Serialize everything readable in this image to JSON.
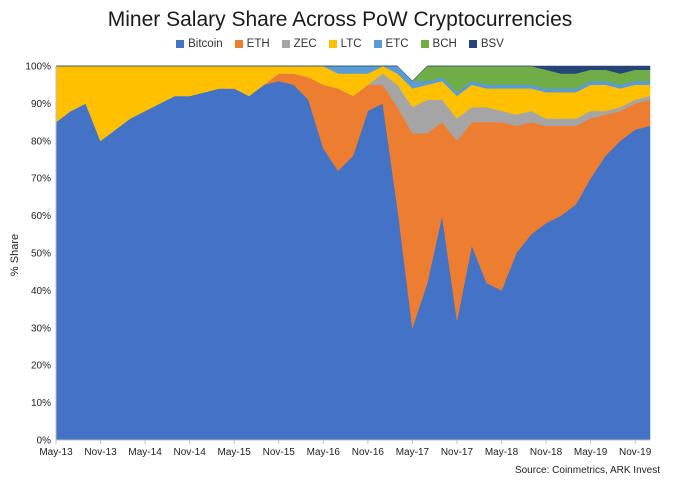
{
  "chart_data": {
    "type": "area",
    "title": "Miner Salary Share Across PoW Cryptocurrencies",
    "ylabel": "% Share",
    "xlabel": "",
    "source": "Source: Coinmetrics, ARK Invest",
    "ylim": [
      0,
      100
    ],
    "yticks": [
      "0%",
      "10%",
      "20%",
      "30%",
      "40%",
      "50%",
      "60%",
      "70%",
      "80%",
      "90%",
      "100%"
    ],
    "xticks": [
      "May-13",
      "Nov-13",
      "May-14",
      "Nov-14",
      "May-15",
      "Nov-15",
      "May-16",
      "Nov-16",
      "May-17",
      "Nov-17",
      "May-18",
      "Nov-18",
      "May-19",
      "Nov-19"
    ],
    "legend_position": "top",
    "stacked": true,
    "series": [
      {
        "name": "Bitcoin",
        "color": "#4472C4"
      },
      {
        "name": "ETH",
        "color": "#ED7D31"
      },
      {
        "name": "ZEC",
        "color": "#A5A5A5"
      },
      {
        "name": "LTC",
        "color": "#FFC000"
      },
      {
        "name": "ETC",
        "color": "#5B9BD5"
      },
      {
        "name": "BCH",
        "color": "#70AD47"
      },
      {
        "name": "BSV",
        "color": "#264478"
      }
    ],
    "x": [
      "May-13",
      "Jul-13",
      "Sep-13",
      "Nov-13",
      "Jan-14",
      "Mar-14",
      "May-14",
      "Jul-14",
      "Sep-14",
      "Nov-14",
      "Jan-15",
      "Mar-15",
      "May-15",
      "Jul-15",
      "Sep-15",
      "Nov-15",
      "Jan-16",
      "Mar-16",
      "May-16",
      "Jul-16",
      "Sep-16",
      "Nov-16",
      "Jan-17",
      "Mar-17",
      "May-17",
      "Jul-17",
      "Sep-17",
      "Nov-17",
      "Jan-18",
      "Mar-18",
      "May-18",
      "Jul-18",
      "Sep-18",
      "Nov-18",
      "Jan-19",
      "Mar-19",
      "May-19",
      "Jul-19",
      "Sep-19",
      "Nov-19",
      "Dec-19"
    ],
    "values": {
      "Bitcoin": [
        85,
        88,
        90,
        80,
        83,
        86,
        88,
        90,
        92,
        92,
        93,
        94,
        94,
        92,
        95,
        96,
        95,
        91,
        78,
        72,
        76,
        88,
        90,
        62,
        30,
        42,
        60,
        32,
        52,
        42,
        40,
        50,
        55,
        58,
        60,
        63,
        70,
        76,
        80,
        83,
        84
      ],
      "ETH": [
        0,
        0,
        0,
        0,
        0,
        0,
        0,
        0,
        0,
        0,
        0,
        0,
        0,
        0,
        0,
        2,
        3,
        6,
        17,
        22,
        16,
        7,
        5,
        27,
        52,
        40,
        25,
        48,
        33,
        43,
        45,
        34,
        30,
        26,
        24,
        21,
        16,
        11,
        8,
        7,
        7
      ],
      "ZEC": [
        0,
        0,
        0,
        0,
        0,
        0,
        0,
        0,
        0,
        0,
        0,
        0,
        0,
        0,
        0,
        0,
        0,
        0,
        0,
        0,
        0,
        0,
        3,
        6,
        7,
        9,
        6,
        6,
        4,
        4,
        3,
        3,
        3,
        2,
        2,
        2,
        2,
        1,
        1,
        1,
        1
      ],
      "LTC": [
        15,
        12,
        10,
        20,
        17,
        14,
        12,
        10,
        8,
        8,
        7,
        6,
        6,
        8,
        5,
        2,
        2,
        3,
        5,
        4,
        6,
        3,
        2,
        3,
        5,
        4,
        5,
        6,
        6,
        5,
        6,
        7,
        6,
        7,
        7,
        7,
        7,
        7,
        5,
        4,
        3
      ],
      "ETC": [
        0,
        0,
        0,
        0,
        0,
        0,
        0,
        0,
        0,
        0,
        0,
        0,
        0,
        0,
        0,
        0,
        0,
        0,
        0,
        2,
        2,
        2,
        0,
        2,
        2,
        1,
        1,
        1,
        1,
        1,
        1,
        1,
        1,
        1,
        1,
        1,
        1,
        1,
        1,
        1,
        1
      ],
      "BCH": [
        0,
        0,
        0,
        0,
        0,
        0,
        0,
        0,
        0,
        0,
        0,
        0,
        0,
        0,
        0,
        0,
        0,
        0,
        0,
        0,
        0,
        0,
        0,
        0,
        0,
        4,
        3,
        7,
        4,
        5,
        5,
        5,
        5,
        5,
        4,
        4,
        3,
        3,
        3,
        3,
        3
      ],
      "BSV": [
        0,
        0,
        0,
        0,
        0,
        0,
        0,
        0,
        0,
        0,
        0,
        0,
        0,
        0,
        0,
        0,
        0,
        0,
        0,
        0,
        0,
        0,
        0,
        0,
        0,
        0,
        0,
        0,
        0,
        0,
        0,
        0,
        0,
        1,
        2,
        2,
        1,
        1,
        2,
        1,
        1
      ]
    }
  }
}
